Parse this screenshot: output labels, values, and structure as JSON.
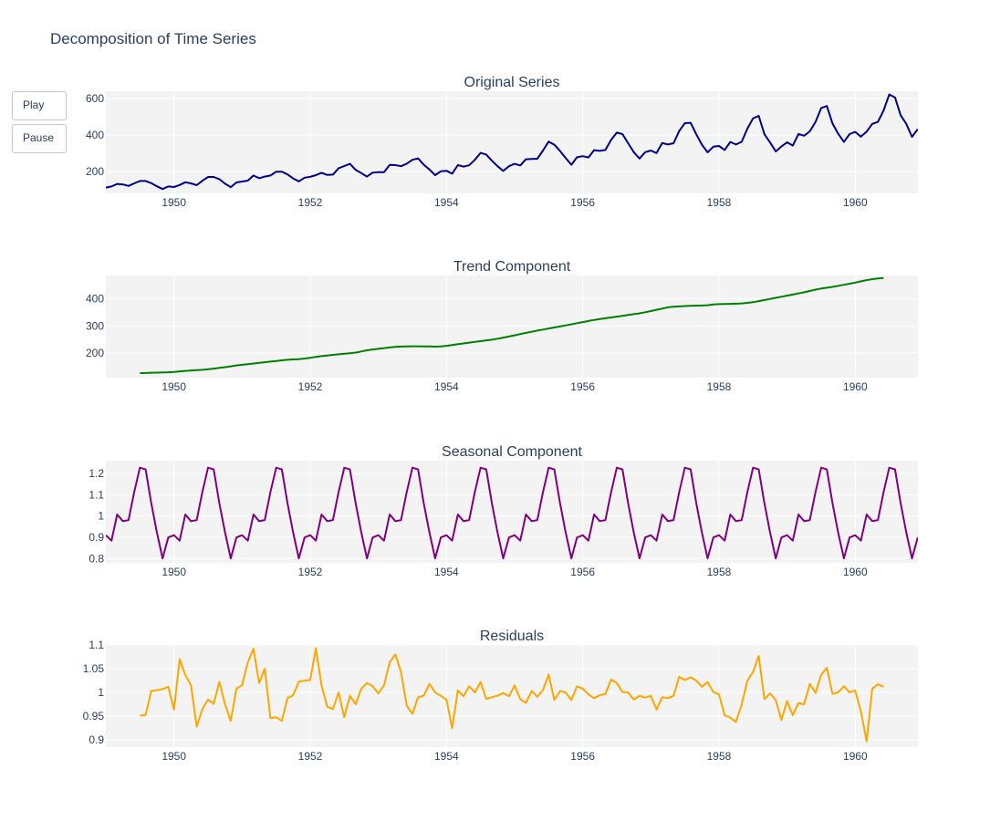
{
  "title": "Decomposition of Time Series",
  "controls": {
    "play_label": "Play",
    "pause_label": "Pause"
  },
  "chart_data": [
    {
      "type": "line",
      "title": "Original Series",
      "color": "#00008b",
      "x_start": 1949.0,
      "x_step": 0.0833333,
      "xlim": [
        1949.0,
        1960.92
      ],
      "ylim": [
        80,
        640
      ],
      "yticks": [
        200,
        400,
        600
      ],
      "xticks": [
        1950,
        1952,
        1954,
        1956,
        1958,
        1960
      ],
      "values": [
        112,
        118,
        132,
        129,
        121,
        135,
        148,
        148,
        136,
        119,
        104,
        118,
        115,
        126,
        141,
        135,
        125,
        149,
        170,
        170,
        158,
        133,
        114,
        140,
        145,
        150,
        178,
        163,
        172,
        178,
        199,
        199,
        184,
        162,
        146,
        166,
        171,
        180,
        193,
        181,
        183,
        218,
        230,
        242,
        209,
        191,
        172,
        194,
        196,
        196,
        236,
        235,
        229,
        243,
        264,
        272,
        237,
        211,
        180,
        201,
        204,
        188,
        235,
        227,
        234,
        264,
        302,
        293,
        259,
        229,
        203,
        229,
        242,
        233,
        267,
        269,
        270,
        315,
        364,
        347,
        312,
        274,
        237,
        278,
        284,
        277,
        317,
        313,
        318,
        374,
        413,
        405,
        355,
        306,
        271,
        306,
        315,
        301,
        356,
        348,
        355,
        422,
        465,
        467,
        404,
        347,
        305,
        336,
        340,
        318,
        362,
        348,
        363,
        435,
        491,
        505,
        404,
        359,
        310,
        337,
        360,
        342,
        406,
        396,
        420,
        472,
        548,
        559,
        463,
        407,
        362,
        405,
        417,
        391,
        419,
        461,
        472,
        535,
        622,
        606,
        508,
        461,
        390,
        432
      ]
    },
    {
      "type": "line",
      "title": "Trend Component",
      "color": "#008000",
      "x_start": 1949.5,
      "x_step": 0.0833333,
      "xlim": [
        1949.0,
        1960.92
      ],
      "ylim": [
        110,
        485
      ],
      "yticks": [
        200,
        300,
        400
      ],
      "xticks": [
        1950,
        1952,
        1954,
        1956,
        1958,
        1960
      ],
      "values": [
        126.8,
        127.2,
        127.96,
        128.58,
        129.0,
        129.75,
        131.25,
        133.08,
        134.92,
        136.42,
        137.42,
        138.75,
        140.92,
        143.17,
        145.71,
        148.42,
        151.54,
        154.71,
        157.12,
        159.54,
        161.83,
        164.12,
        166.67,
        169.08,
        171.25,
        173.58,
        175.46,
        176.83,
        178.04,
        180.17,
        183.12,
        186.21,
        189.04,
        191.29,
        193.58,
        195.83,
        198.04,
        199.75,
        202.21,
        206.25,
        210.42,
        213.38,
        215.83,
        218.5,
        220.92,
        222.92,
        224.08,
        224.71,
        225.33,
        225.33,
        224.96,
        224.92,
        224.0,
        224.42,
        226.83,
        229.92,
        232.83,
        235.63,
        238.58,
        241.29,
        243.96,
        246.88,
        249.42,
        253.0,
        257.13,
        261.08,
        265.21,
        269.92,
        274.5,
        278.58,
        282.67,
        286.5,
        290.5,
        294.3,
        298.0,
        302.0,
        306.0,
        310.0,
        314.0,
        318.0,
        322.0,
        325.0,
        328.0,
        331.0,
        334.0,
        337.0,
        340.0,
        343.0,
        346.0,
        350.0,
        354.5,
        359.0,
        363.5,
        368.0,
        370.0,
        371.5,
        373.0,
        374.0,
        374.5,
        375.0,
        376.0,
        378.5,
        380.0,
        380.5,
        381.0,
        381.5,
        382.5,
        384.5,
        387.0,
        391.0,
        395.0,
        399.0,
        403.0,
        407.0,
        411.0,
        415.0,
        419.0,
        423.5,
        428.0,
        433.0,
        437.0,
        440.0,
        443.0,
        447.0,
        451.0,
        455.0,
        459.0,
        463.5,
        468.0,
        471.5,
        474.0,
        476.0
      ]
    },
    {
      "type": "line",
      "title": "Seasonal Component",
      "color": "#800080",
      "x_start": 1949.0,
      "x_step": 0.0833333,
      "xlim": [
        1949.0,
        1960.92
      ],
      "ylim": [
        0.78,
        1.26
      ],
      "yticks": [
        0.8,
        0.9,
        1,
        1.1,
        1.2
      ],
      "ytick_labels": [
        "0.8",
        "0.9",
        "1",
        "1.1",
        "1.2"
      ],
      "xticks": [
        1950,
        1952,
        1954,
        1956,
        1958,
        1960
      ],
      "pattern": [
        0.91,
        0.884,
        1.007,
        0.976,
        0.981,
        1.113,
        1.227,
        1.219,
        1.06,
        0.922,
        0.801,
        0.899
      ],
      "cycles": 12
    },
    {
      "type": "line",
      "title": "Residuals",
      "color": "#ffa500",
      "x_start": 1949.5,
      "x_step": 0.0833333,
      "xlim": [
        1949.0,
        1960.92
      ],
      "ylim": [
        0.885,
        1.1
      ],
      "yticks": [
        0.9,
        0.95,
        1,
        1.05,
        1.1
      ],
      "ytick_labels": [
        "0.9",
        "0.95",
        "1",
        "1.05",
        "1.1"
      ],
      "xticks": [
        1950,
        1952,
        1954,
        1956,
        1958,
        1960
      ],
      "values": [
        0.951,
        0.953,
        1.003,
        1.005,
        1.007,
        1.012,
        0.964,
        1.07,
        1.037,
        1.015,
        0.928,
        0.965,
        0.985,
        0.976,
        1.022,
        0.975,
        0.94,
        1.008,
        1.015,
        1.063,
        1.092,
        1.02,
        1.05,
        0.946,
        0.948,
        0.94,
        0.988,
        0.994,
        1.023,
        1.025,
        1.026,
        1.093,
        1.015,
        0.97,
        0.965,
        1.0,
        0.948,
        0.993,
        0.975,
        1.008,
        1.02,
        1.013,
        0.998,
        1.015,
        1.064,
        1.08,
        1.043,
        0.972,
        0.955,
        0.99,
        0.993,
        1.018,
        1.0,
        0.993,
        0.985,
        0.925,
        1.004,
        0.992,
        1.013,
        1.0,
        1.022,
        0.986,
        0.99,
        0.993,
        0.999,
        0.992,
        1.015,
        0.986,
        0.978,
        1.003,
        0.991,
        1.005,
        1.038,
        0.984,
        1.003,
        1.0,
        0.984,
        1.013,
        1.008,
        0.996,
        0.988,
        0.994,
        0.997,
        1.027,
        1.02,
        1.001,
        1.0,
        0.985,
        0.993,
        0.989,
        0.993,
        0.964,
        0.99,
        0.988,
        0.993,
        1.033,
        1.026,
        1.032,
        1.025,
        1.012,
        1.022,
        1.001,
        0.996,
        0.952,
        0.947,
        0.938,
        0.975,
        1.025,
        1.043,
        1.077,
        0.986,
        0.998,
        0.984,
        0.942,
        0.982,
        0.952,
        0.978,
        0.975,
        1.018,
        0.999,
        1.037,
        1.052,
        0.997,
        1.0,
        1.013,
        1.0,
        1.004,
        0.96,
        0.897,
        1.008,
        1.017,
        1.012
      ]
    }
  ]
}
